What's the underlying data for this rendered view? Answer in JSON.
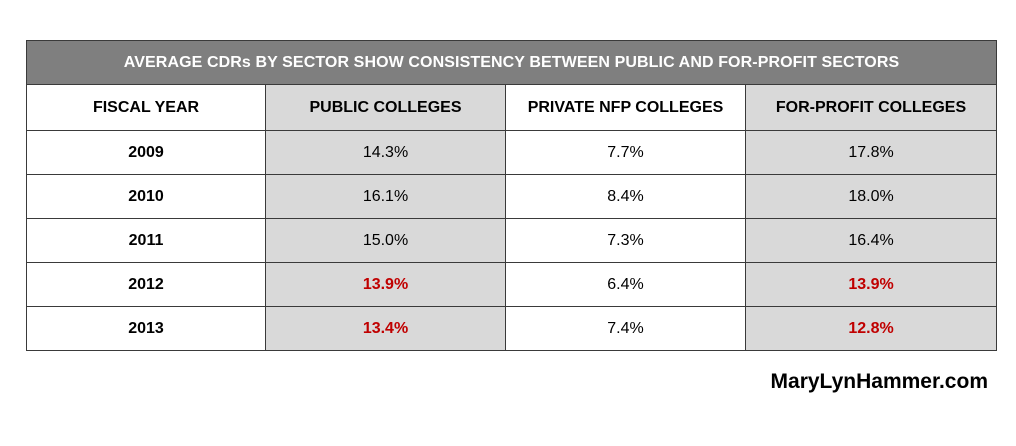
{
  "table": {
    "title": "AVERAGE CDRs BY SECTOR SHOW CONSISTENCY BETWEEN PUBLIC AND FOR-PROFIT SECTORS",
    "headers": [
      "FISCAL YEAR",
      "PUBLIC COLLEGES",
      "PRIVATE NFP COLLEGES",
      "FOR-PROFIT COLLEGES"
    ],
    "rows": [
      {
        "year": "2009",
        "public": "14.3%",
        "private": "7.7%",
        "forprofit": "17.8%"
      },
      {
        "year": "2010",
        "public": "16.1%",
        "private": "8.4%",
        "forprofit": "18.0%"
      },
      {
        "year": "2011",
        "public": "15.0%",
        "private": "7.3%",
        "forprofit": "16.4%"
      },
      {
        "year": "2012",
        "public": "13.9%",
        "private": "6.4%",
        "forprofit": "13.9%"
      },
      {
        "year": "2013",
        "public": "13.4%",
        "private": "7.4%",
        "forprofit": "12.8%"
      }
    ],
    "colors": {
      "title_bg": "#7f7f7f",
      "shaded_column": "#d9d9d9",
      "highlight_text": "#c00000"
    }
  },
  "footer": {
    "credit": "MaryLynHammer.com"
  }
}
